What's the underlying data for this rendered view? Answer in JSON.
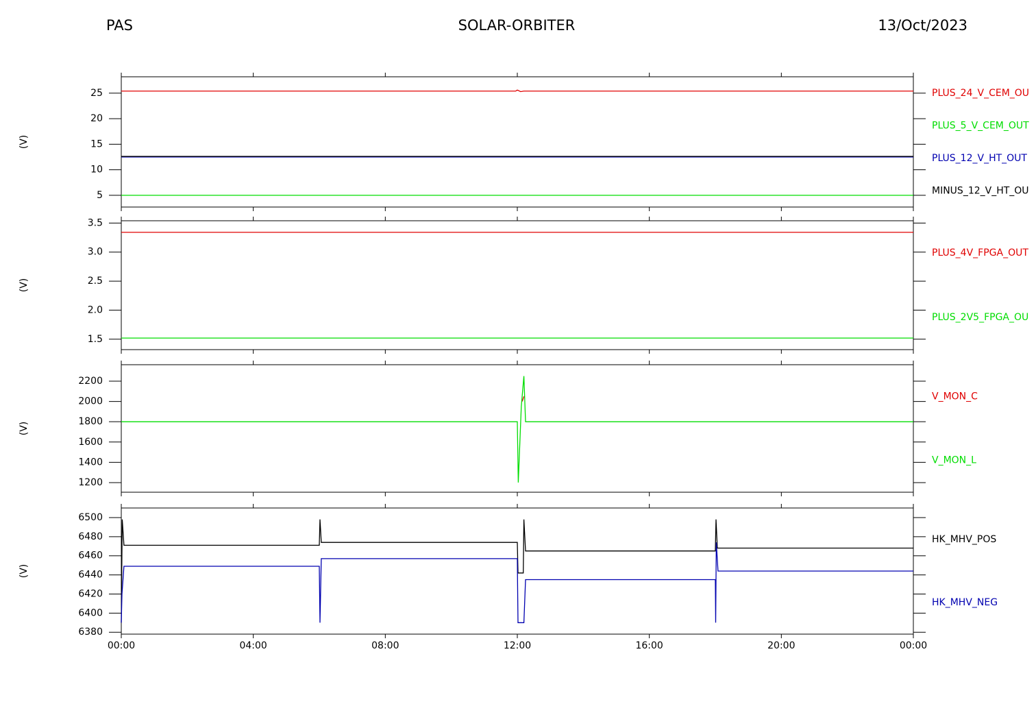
{
  "header": {
    "left": "PAS",
    "center": "SOLAR-ORBITER",
    "right": "13/Oct/2023"
  },
  "chart_data": [
    {
      "type": "line",
      "ylabel": "(V)",
      "xlim": [
        0,
        24
      ],
      "ylim": [
        2.7,
        28.2
      ],
      "yticks": [
        5,
        10,
        15,
        20,
        25
      ],
      "series": [
        {
          "name": "PLUS_24_V_CEM_OU",
          "color": "#e00000",
          "x": [
            0,
            11.95,
            12.0,
            12.1,
            12.2,
            24
          ],
          "values": [
            25.4,
            25.4,
            25.6,
            25.3,
            25.4,
            25.4
          ]
        },
        {
          "name": "PLUS_5_V_CEM_OUT",
          "color": "#00dd00",
          "x": [
            0,
            24
          ],
          "values": [
            5.0,
            5.0
          ]
        },
        {
          "name": "PLUS_12_V_HT_OUT",
          "color": "#0000b0",
          "x": [
            0,
            24
          ],
          "values": [
            12.5,
            12.5
          ]
        },
        {
          "name": "MINUS_12_V_HT_OU",
          "color": "#000000",
          "x": [
            0,
            24
          ],
          "values": [
            12.6,
            12.6
          ]
        }
      ]
    },
    {
      "type": "line",
      "ylabel": "(V)",
      "xlim": [
        0,
        24
      ],
      "ylim": [
        1.32,
        3.54
      ],
      "yticks": [
        1.5,
        {
          "value": 2,
          "label": "2.0"
        },
        2.5,
        {
          "value": 3,
          "label": "3.0"
        },
        3.5
      ],
      "series": [
        {
          "name": "PLUS_4V_FPGA_OUT",
          "color": "#e00000",
          "x": [
            0,
            24
          ],
          "values": [
            3.34,
            3.34
          ]
        },
        {
          "name": "PLUS_2V5_FPGA_OU",
          "color": "#00dd00",
          "x": [
            0,
            24
          ],
          "values": [
            1.52,
            1.52
          ]
        }
      ]
    },
    {
      "type": "line",
      "ylabel": "(V)",
      "xlim": [
        0,
        24
      ],
      "ylim": [
        1105,
        2362
      ],
      "yticks": [
        1200,
        1400,
        1600,
        1800,
        2000,
        2200
      ],
      "series": [
        {
          "name": "V_MON_C",
          "color": "#e00000",
          "x": [
            12.15,
            12.2
          ],
          "values": [
            2000,
            2050
          ]
        },
        {
          "name": "V_MON_L",
          "color": "#00dd00",
          "x": [
            0,
            12.0,
            12.03,
            12.12,
            12.2,
            12.25,
            24
          ],
          "values": [
            1800,
            1800,
            1200,
            1950,
            2250,
            1800,
            1800
          ]
        }
      ]
    },
    {
      "type": "line",
      "ylabel": "(V)",
      "xlim": [
        0,
        24
      ],
      "ylim": [
        6378,
        6510
      ],
      "yticks": [
        6380,
        6400,
        6420,
        6440,
        6460,
        6480,
        6500
      ],
      "xticks": [
        {
          "value": 0,
          "label": "00:00"
        },
        {
          "value": 4,
          "label": "04:00"
        },
        {
          "value": 8,
          "label": "08:00"
        },
        {
          "value": 12,
          "label": "12:00"
        },
        {
          "value": 16,
          "label": "16:00"
        },
        {
          "value": 20,
          "label": "20:00"
        },
        {
          "value": 24,
          "label": "00:00"
        }
      ],
      "series": [
        {
          "name": "HK_MHV_POS",
          "color": "#000000",
          "x": [
            0,
            0.03,
            0.08,
            6.0,
            6.02,
            6.06,
            12.0,
            12.02,
            12.18,
            12.2,
            12.25,
            18.0,
            18.02,
            18.06,
            24
          ],
          "values": [
            6390,
            6498,
            6471,
            6471,
            6498,
            6474,
            6474,
            6442,
            6442,
            6498,
            6465,
            6465,
            6498,
            6468,
            6468
          ]
        },
        {
          "name": "HK_MHV_NEG",
          "color": "#0000b0",
          "x": [
            0,
            0.02,
            0.08,
            6.0,
            6.02,
            6.06,
            12.0,
            12.02,
            12.2,
            12.25,
            18.0,
            18.01,
            18.03,
            18.08,
            24
          ],
          "values": [
            6390,
            6420,
            6449,
            6449,
            6390,
            6457,
            6457,
            6390,
            6390,
            6435,
            6435,
            6390,
            6474,
            6444,
            6444
          ]
        }
      ]
    }
  ]
}
